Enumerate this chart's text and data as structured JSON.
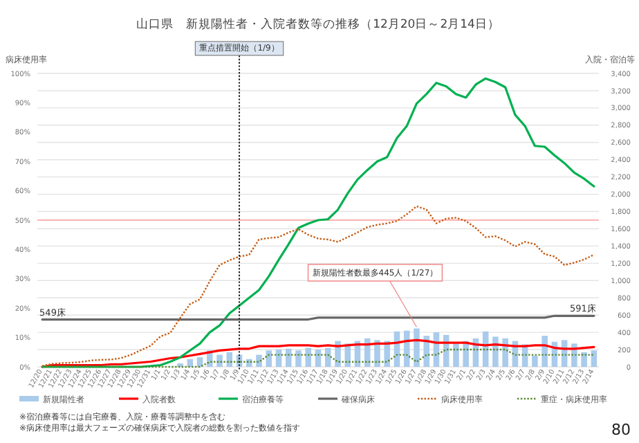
{
  "chart_data": {
    "type": "line",
    "title": "山口県　新規陽性者・入院者数等の推移（12月20日～2月14日）",
    "ylabel": "入院・宿泊等",
    "y2label": "病床使用率",
    "categories": [
      "12/20",
      "12/21",
      "12/22",
      "12/23",
      "12/24",
      "12/25",
      "12/26",
      "12/27",
      "12/28",
      "12/29",
      "12/30",
      "12/31",
      "1/1",
      "1/2",
      "1/3",
      "1/4",
      "1/5",
      "1/6",
      "1/7",
      "1/8",
      "1/9",
      "1/10",
      "1/11",
      "1/12",
      "1/13",
      "1/14",
      "1/15",
      "1/16",
      "1/17",
      "1/18",
      "1/19",
      "1/20",
      "1/21",
      "1/22",
      "1/23",
      "1/24",
      "1/25",
      "1/26",
      "1/27",
      "1/28",
      "1/29",
      "1/30",
      "1/31",
      "2/1",
      "2/2",
      "2/3",
      "2/4",
      "2/5",
      "2/6",
      "2/7",
      "2/8",
      "2/9",
      "2/10",
      "2/11",
      "2/12",
      "2/13",
      "2/14"
    ],
    "series": [
      {
        "name": "新規陽性者",
        "type": "bar",
        "color": "#a9cbec",
        "values": [
          0,
          0,
          0,
          0,
          0,
          0,
          0,
          0,
          null,
          null,
          null,
          10,
          null,
          null,
          40,
          90,
          110,
          190,
          140,
          170,
          140,
          90,
          140,
          190,
          200,
          210,
          190,
          220,
          200,
          220,
          300,
          270,
          300,
          330,
          310,
          300,
          410,
          420,
          445,
          360,
          400,
          370,
          270,
          300,
          330,
          410,
          350,
          330,
          300,
          260,
          130,
          360,
          290,
          310,
          270,
          170,
          190
        ]
      },
      {
        "name": "入院者数",
        "color": "#ff0000",
        "line_style": "solid",
        "values": [
          0,
          20,
          20,
          20,
          20,
          20,
          20,
          30,
          30,
          40,
          50,
          60,
          80,
          100,
          110,
          130,
          150,
          170,
          190,
          200,
          210,
          210,
          240,
          240,
          240,
          250,
          250,
          250,
          240,
          250,
          240,
          250,
          260,
          260,
          270,
          270,
          280,
          300,
          310,
          300,
          280,
          280,
          280,
          280,
          260,
          250,
          260,
          250,
          240,
          240,
          250,
          250,
          220,
          210,
          210,
          220,
          230
        ]
      },
      {
        "name": "宿泊療養等",
        "color": "#00b050",
        "line_style": "solid",
        "values": [
          0,
          0,
          0,
          0,
          0,
          0,
          0,
          0,
          0,
          0,
          0,
          10,
          20,
          60,
          110,
          190,
          270,
          400,
          480,
          620,
          710,
          800,
          890,
          1050,
          1240,
          1420,
          1610,
          1660,
          1700,
          1710,
          1820,
          2010,
          2170,
          2280,
          2380,
          2430,
          2650,
          2790,
          3050,
          3160,
          3290,
          3250,
          3160,
          3120,
          3270,
          3340,
          3300,
          3240,
          2920,
          2790,
          2560,
          2550,
          2450,
          2360,
          2250,
          2180,
          2090
        ]
      },
      {
        "name": "確保病床",
        "color": "#666666",
        "line_style": "solid",
        "values": [
          549,
          549,
          549,
          549,
          549,
          549,
          549,
          549,
          549,
          549,
          549,
          549,
          549,
          549,
          549,
          549,
          549,
          549,
          549,
          549,
          549,
          549,
          549,
          549,
          549,
          549,
          549,
          549,
          570,
          570,
          570,
          570,
          570,
          570,
          570,
          570,
          570,
          570,
          570,
          570,
          570,
          570,
          570,
          570,
          570,
          570,
          570,
          570,
          570,
          570,
          570,
          570,
          591,
          591,
          591,
          591,
          591
        ]
      },
      {
        "name": "病床使用率",
        "axis": "y2",
        "color": "#c55a11",
        "line_style": "dotted",
        "values": [
          0.3,
          1,
          1.3,
          1.4,
          1.7,
          2.2,
          2.4,
          2.5,
          3,
          4.1,
          5.7,
          7.2,
          10.4,
          11.6,
          16.7,
          21.4,
          23,
          29.2,
          34.7,
          36.3,
          37.6,
          38.2,
          43.4,
          43.9,
          44.2,
          45.8,
          46.9,
          45,
          43.7,
          43.4,
          42.6,
          44.2,
          45.8,
          47.6,
          48.4,
          48.9,
          49.7,
          52,
          54.7,
          53.6,
          48.9,
          50.5,
          50.8,
          49.7,
          47.3,
          44.2,
          44.5,
          43.1,
          41,
          42.6,
          41.8,
          38.4,
          37.6,
          34.7,
          35.5,
          36.6,
          38.2
        ]
      },
      {
        "name": "重症・病床使用率",
        "axis": "y2",
        "color": "#5a8a2e",
        "line_style": "dotted",
        "values": [
          0,
          0,
          0,
          0,
          0,
          0,
          0,
          0,
          0,
          0,
          0,
          0,
          0,
          0,
          0,
          0,
          0,
          1.7,
          1.7,
          1.7,
          1.7,
          1.7,
          1.7,
          4.1,
          4.1,
          4.1,
          4.1,
          4.1,
          4.1,
          4.1,
          1.7,
          1.7,
          1.7,
          1.7,
          1.7,
          1.7,
          4.1,
          4.1,
          1.7,
          4.1,
          4.1,
          5.9,
          5.9,
          5.9,
          5.9,
          5.9,
          5.9,
          5.9,
          4.1,
          4.1,
          4.1,
          4.1,
          4.1,
          4.1,
          4.1,
          4.1,
          4.1
        ]
      }
    ],
    "ylim": [
      0,
      3400
    ],
    "yticks": [
      0,
      {
        "value": 200,
        "label": "200"
      },
      {
        "value": 400,
        "label": "400"
      },
      {
        "value": 600,
        "label": "600"
      },
      {
        "value": 800,
        "label": "800"
      },
      {
        "value": 1000,
        "label": "1,000"
      },
      {
        "value": 1200,
        "label": "1,200"
      },
      {
        "value": 1400,
        "label": "1,400"
      },
      {
        "value": 1600,
        "label": "1,600"
      },
      {
        "value": 1800,
        "label": "1,800"
      },
      {
        "value": 2000,
        "label": "2,000"
      },
      {
        "value": 2200,
        "label": "2,200"
      },
      {
        "value": 2400,
        "label": "2,400"
      },
      {
        "value": 2600,
        "label": "2,600"
      },
      {
        "value": 2800,
        "label": "2,800"
      },
      {
        "value": 3000,
        "label": "3,000"
      },
      {
        "value": 3200,
        "label": "3,200"
      },
      {
        "value": 3400,
        "label": "3,400"
      }
    ],
    "y2lim": [
      0,
      100
    ],
    "y2ticks": [
      {
        "value": 0,
        "label": "0%"
      },
      {
        "value": 10,
        "label": "10%"
      },
      {
        "value": 20,
        "label": "20%"
      },
      {
        "value": 30,
        "label": "30%"
      },
      {
        "value": 40,
        "label": "40%"
      },
      {
        "value": 50,
        "label": "50%"
      },
      {
        "value": 60,
        "label": "60%"
      },
      {
        "value": 70,
        "label": "70%"
      },
      {
        "value": 80,
        "label": "80%"
      },
      {
        "value": 90,
        "label": "90%"
      },
      {
        "value": 100,
        "label": "100%"
      }
    ],
    "grid": true,
    "legend": "bottom",
    "ref_lines": [
      {
        "axis": "y2",
        "value": 50,
        "color": "#ff9999",
        "line_style": "solid"
      },
      {
        "axis": "x",
        "value": "1/9",
        "label": "重点措置開始（1/9）",
        "color": "#222222",
        "line_style": "dotted"
      }
    ],
    "annotations": [
      "549床",
      "591床",
      {
        "text": "新規陽性者数最多445人（1/27）",
        "x": "1/27",
        "y": 445
      },
      "※宿泊療養等には自宅療養、入院・療養等調整中を含む",
      "※病床使用率は最大フェーズの確保病床で入院者の総数を割った数値を指す",
      "80"
    ]
  }
}
